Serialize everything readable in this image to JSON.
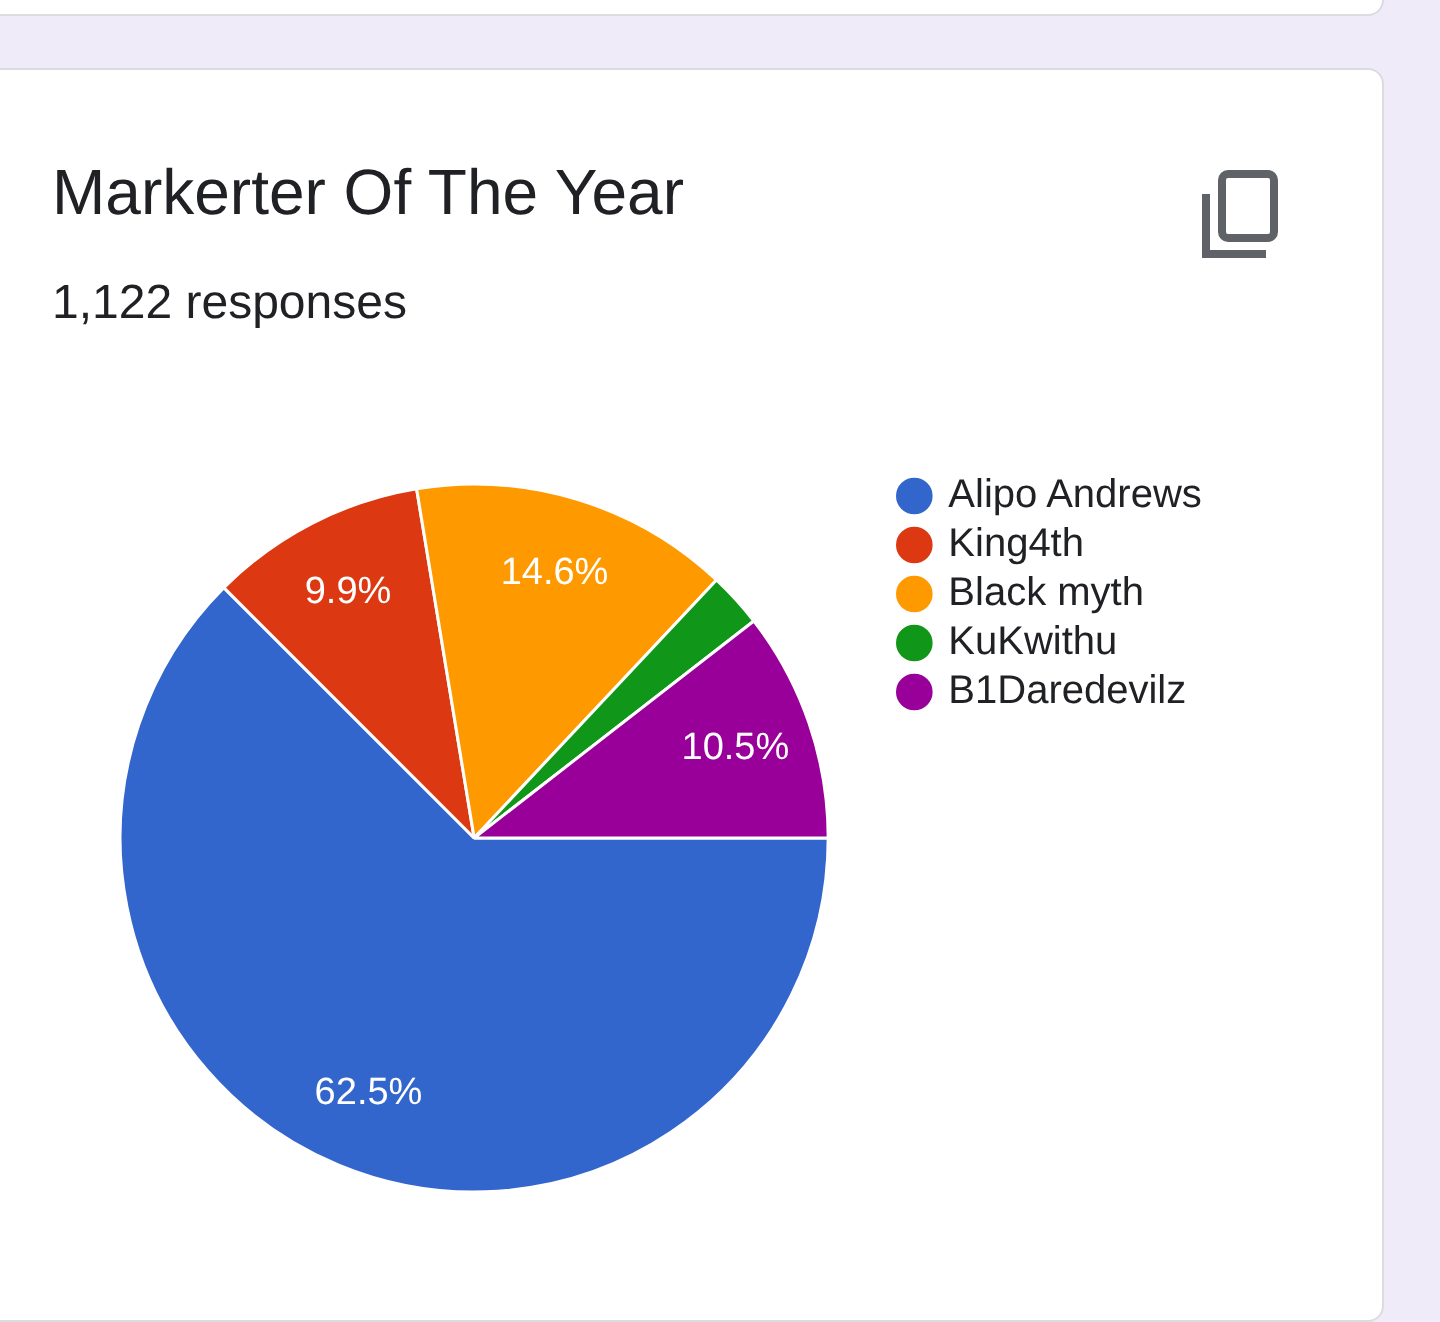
{
  "chart_data": {
    "type": "pie",
    "title": "Markerter Of The Year",
    "subtitle": "1,122 responses",
    "categories": [
      "Alipo Andrews",
      "King4th",
      "Black myth",
      "KuKwithu",
      "B1Daredevilz"
    ],
    "values": [
      62.5,
      9.9,
      14.6,
      2.5,
      10.5
    ],
    "colors": [
      "#3366cc",
      "#dc3912",
      "#ff9900",
      "#109618",
      "#990099"
    ],
    "value_labels": [
      "62.5%",
      "9.9%",
      "14.6%",
      null,
      "10.5%"
    ],
    "legend": "top right"
  }
}
